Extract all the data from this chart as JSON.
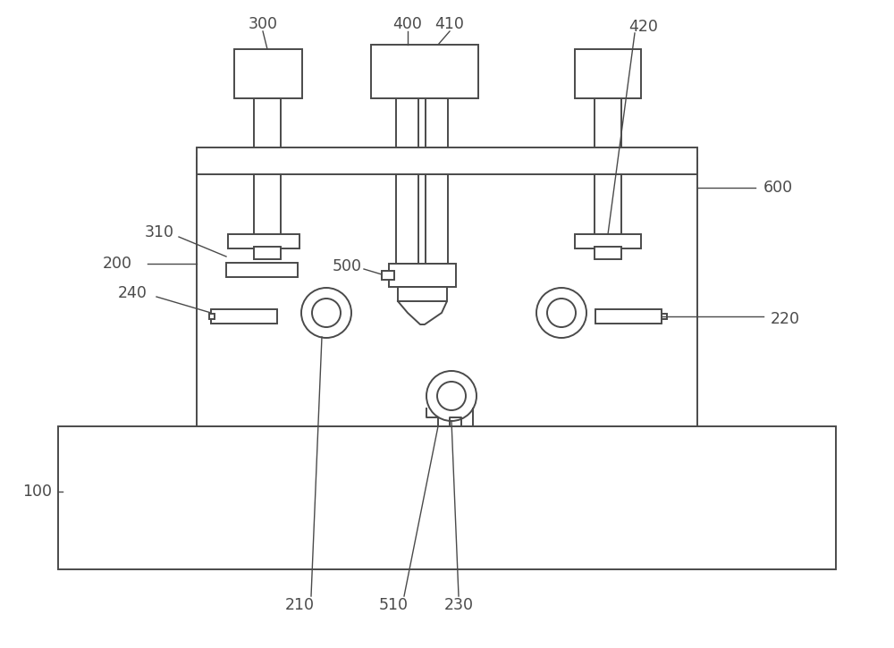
{
  "bg_color": "#ffffff",
  "line_color": "#4a4a4a",
  "label_color": "#4a4a4a",
  "fig_width": 10.0,
  "fig_height": 7.25,
  "dpi": 100
}
